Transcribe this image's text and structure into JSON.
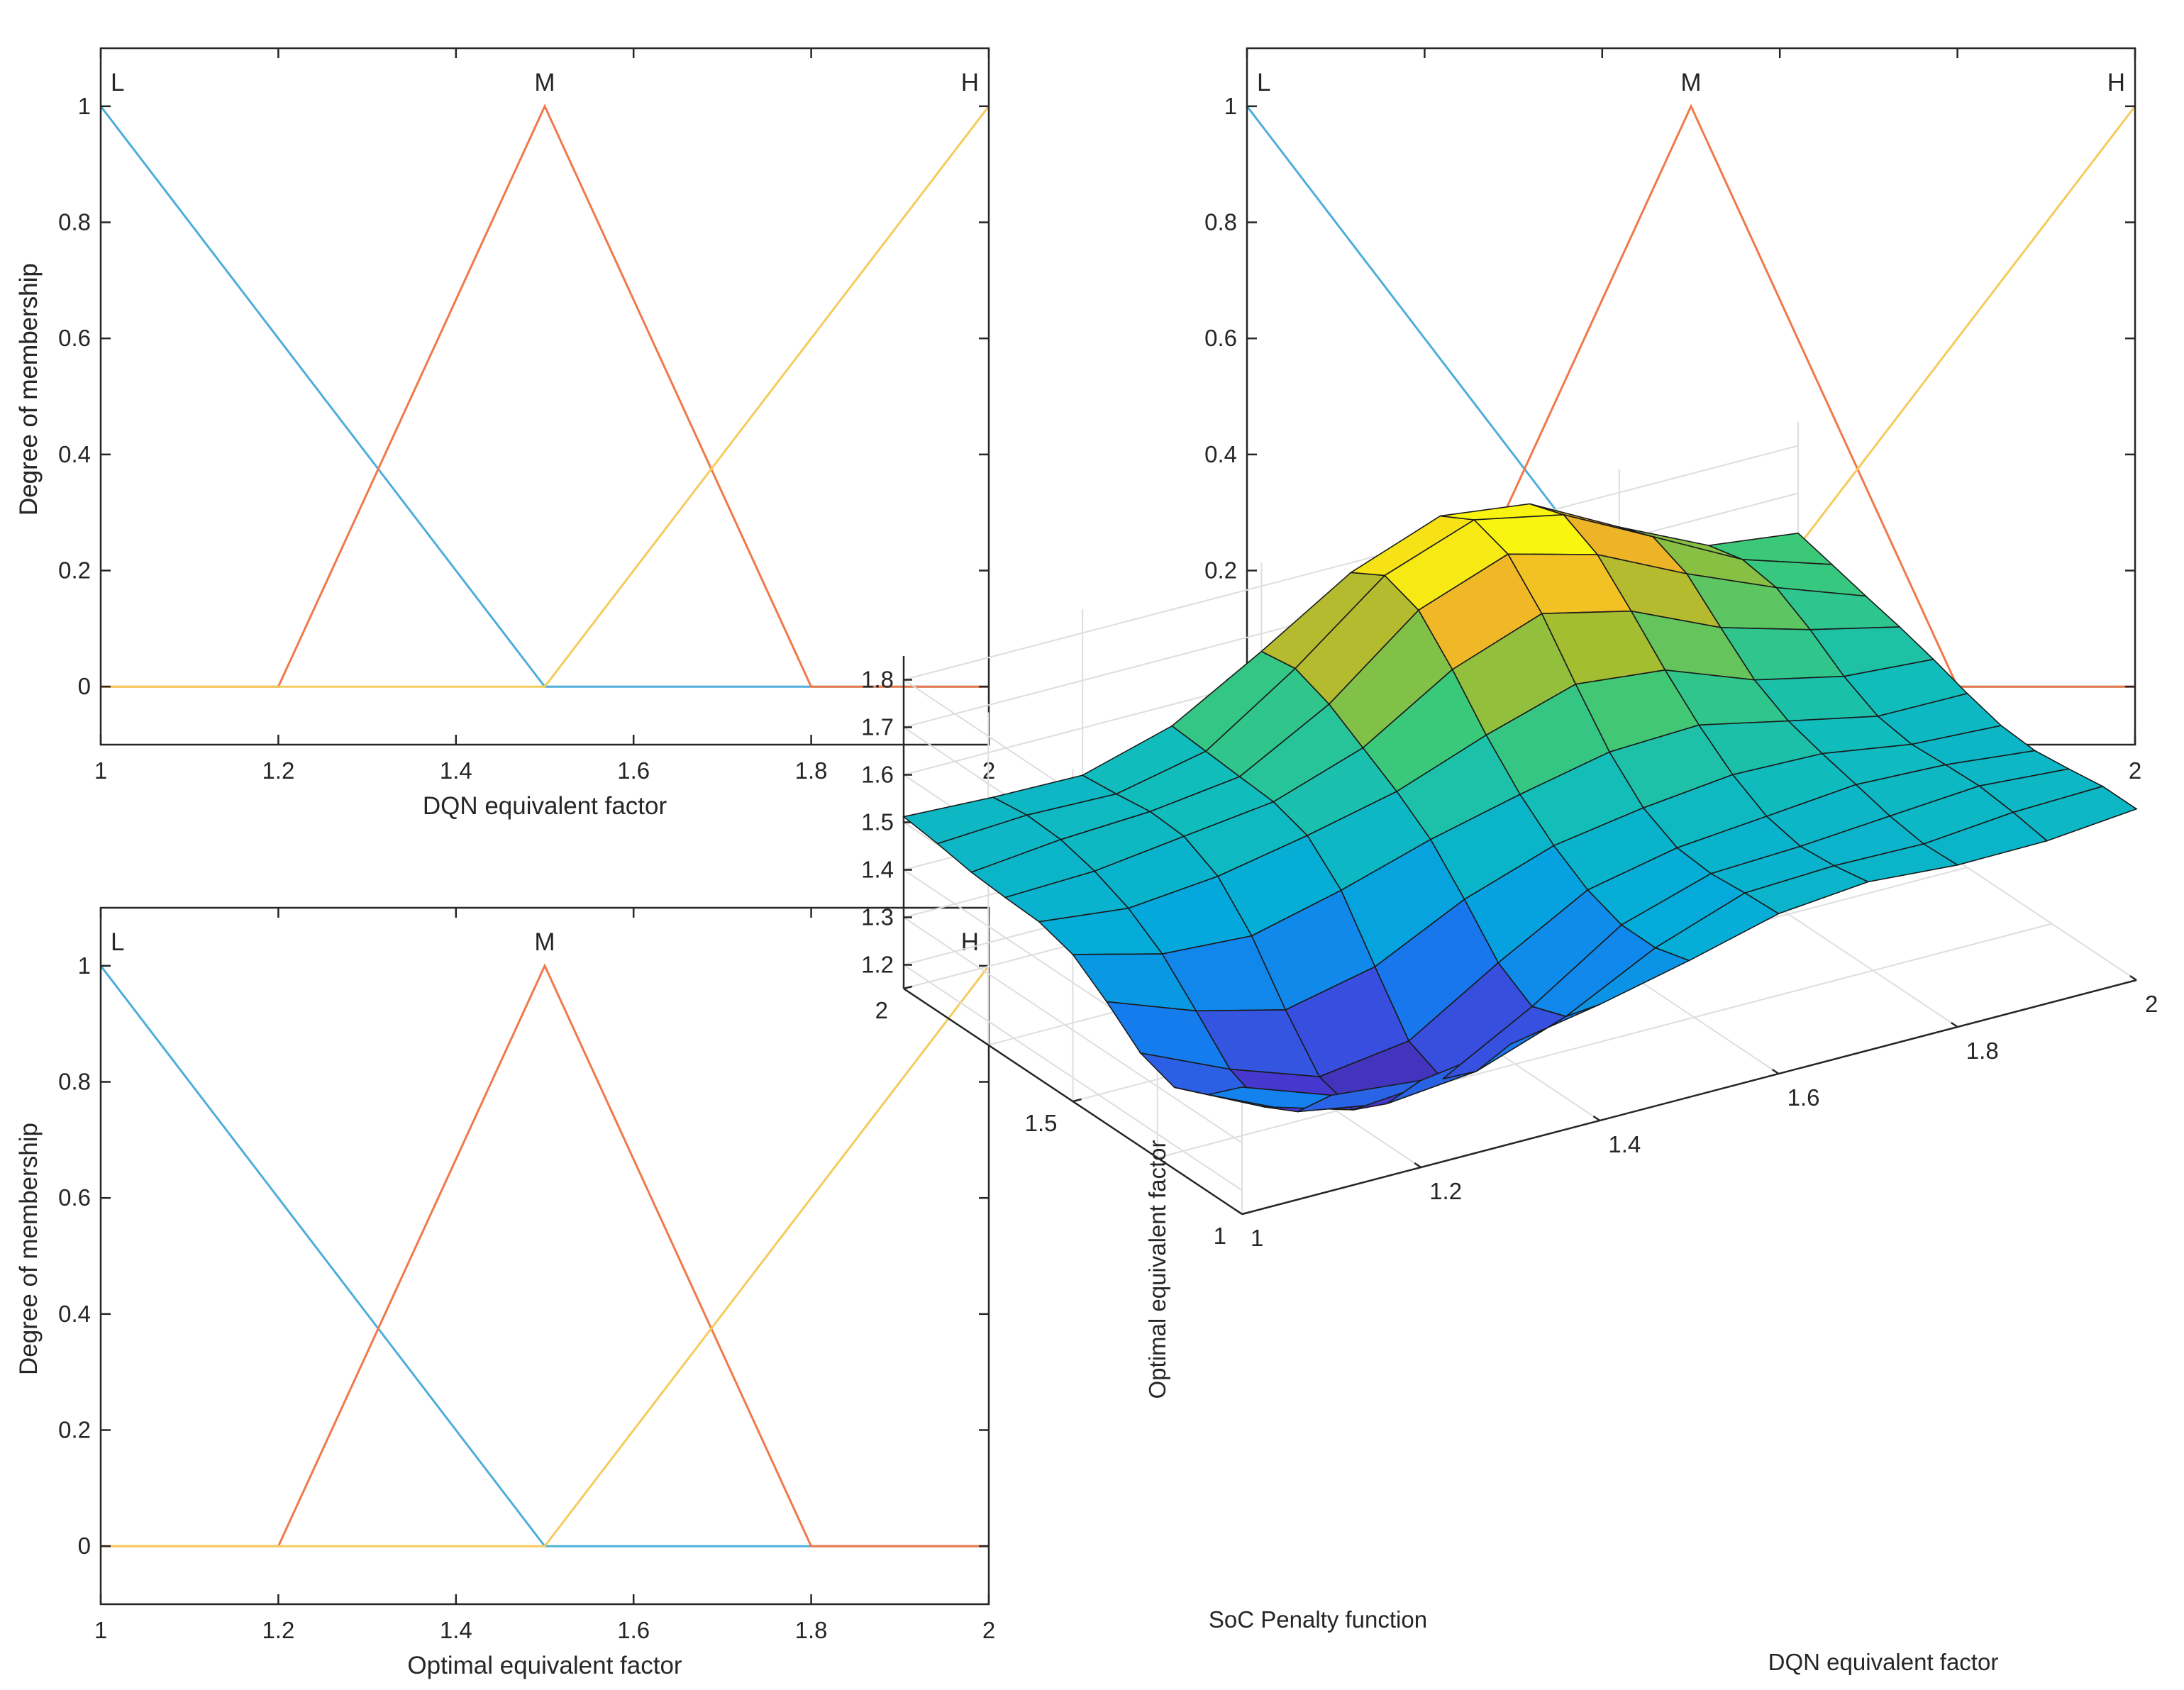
{
  "colors": {
    "L": "#4daedb",
    "M": "#f0794a",
    "H": "#f5cc5c",
    "axis": "#262626",
    "grid": "#dedede"
  },
  "chart_data": [
    {
      "type": "line",
      "title": "",
      "xlabel": "DQN equivalent factor",
      "ylabel": "Degree of membership",
      "xlim": [
        1,
        2
      ],
      "ylim": [
        -0.1,
        1.1
      ],
      "xticks": [
        "1",
        "1.2",
        "1.4",
        "1.6",
        "1.8",
        "2"
      ],
      "yticks": [
        "0",
        "0.2",
        "0.4",
        "0.6",
        "0.8",
        "1"
      ],
      "series": [
        {
          "name": "L",
          "x": [
            1,
            1.5,
            2
          ],
          "y": [
            1,
            0,
            0
          ]
        },
        {
          "name": "M",
          "x": [
            1,
            1.2,
            1.5,
            1.8,
            2
          ],
          "y": [
            0,
            0,
            1,
            0,
            0
          ]
        },
        {
          "name": "H",
          "x": [
            1,
            1.5,
            2
          ],
          "y": [
            0,
            0,
            1
          ]
        }
      ]
    },
    {
      "type": "line",
      "title": "",
      "xlabel": "SoC Penalty function",
      "ylabel": "Degree of membership",
      "xlim": [
        1,
        2
      ],
      "ylim": [
        -0.1,
        1.1
      ],
      "xticks": [
        "1",
        "1.2",
        "1.4",
        "1.6",
        "1.8",
        "2"
      ],
      "yticks": [
        "0",
        "0.2",
        "0.4",
        "0.6",
        "0.8",
        "1"
      ],
      "series": [
        {
          "name": "L",
          "x": [
            1,
            1.5,
            2
          ],
          "y": [
            1,
            0,
            0
          ]
        },
        {
          "name": "M",
          "x": [
            1,
            1.2,
            1.5,
            1.8,
            2
          ],
          "y": [
            0,
            0,
            1,
            0,
            0
          ]
        },
        {
          "name": "H",
          "x": [
            1,
            1.5,
            2
          ],
          "y": [
            0,
            0,
            1
          ]
        }
      ]
    },
    {
      "type": "line",
      "title": "",
      "xlabel": "Optimal equivalent factor",
      "ylabel": "Degree of membership",
      "xlim": [
        1,
        2
      ],
      "ylim": [
        -0.1,
        1.1
      ],
      "xticks": [
        "1",
        "1.2",
        "1.4",
        "1.6",
        "1.8",
        "2"
      ],
      "yticks": [
        "0",
        "0.2",
        "0.4",
        "0.6",
        "0.8",
        "1"
      ],
      "series": [
        {
          "name": "L",
          "x": [
            1,
            1.5,
            2
          ],
          "y": [
            1,
            0,
            0
          ]
        },
        {
          "name": "M",
          "x": [
            1,
            1.2,
            1.5,
            1.8,
            2
          ],
          "y": [
            0,
            0,
            1,
            0,
            0
          ]
        },
        {
          "name": "H",
          "x": [
            1,
            1.5,
            2
          ],
          "y": [
            0,
            0,
            1
          ]
        }
      ]
    },
    {
      "type": "surface",
      "title": "",
      "xlabel": "DQN equivalent factor",
      "ylabel": "SoC Penalty function",
      "zlabel": "Optimal equivalent factor",
      "xlim": [
        1,
        2
      ],
      "ylim": [
        1,
        2
      ],
      "zlim": [
        1.15,
        1.85
      ],
      "xticks": [
        "1",
        "1.2",
        "1.4",
        "1.6",
        "1.8",
        "2"
      ],
      "yticks": [
        "1",
        "1.5",
        "2"
      ],
      "zticks": [
        "1.2",
        "1.3",
        "1.4",
        "1.5",
        "1.6",
        "1.7",
        "1.8"
      ],
      "grid_points": 11,
      "z_min": 1.14,
      "z_center": 1.5,
      "z_max": 1.86,
      "colormap": "parula"
    }
  ]
}
